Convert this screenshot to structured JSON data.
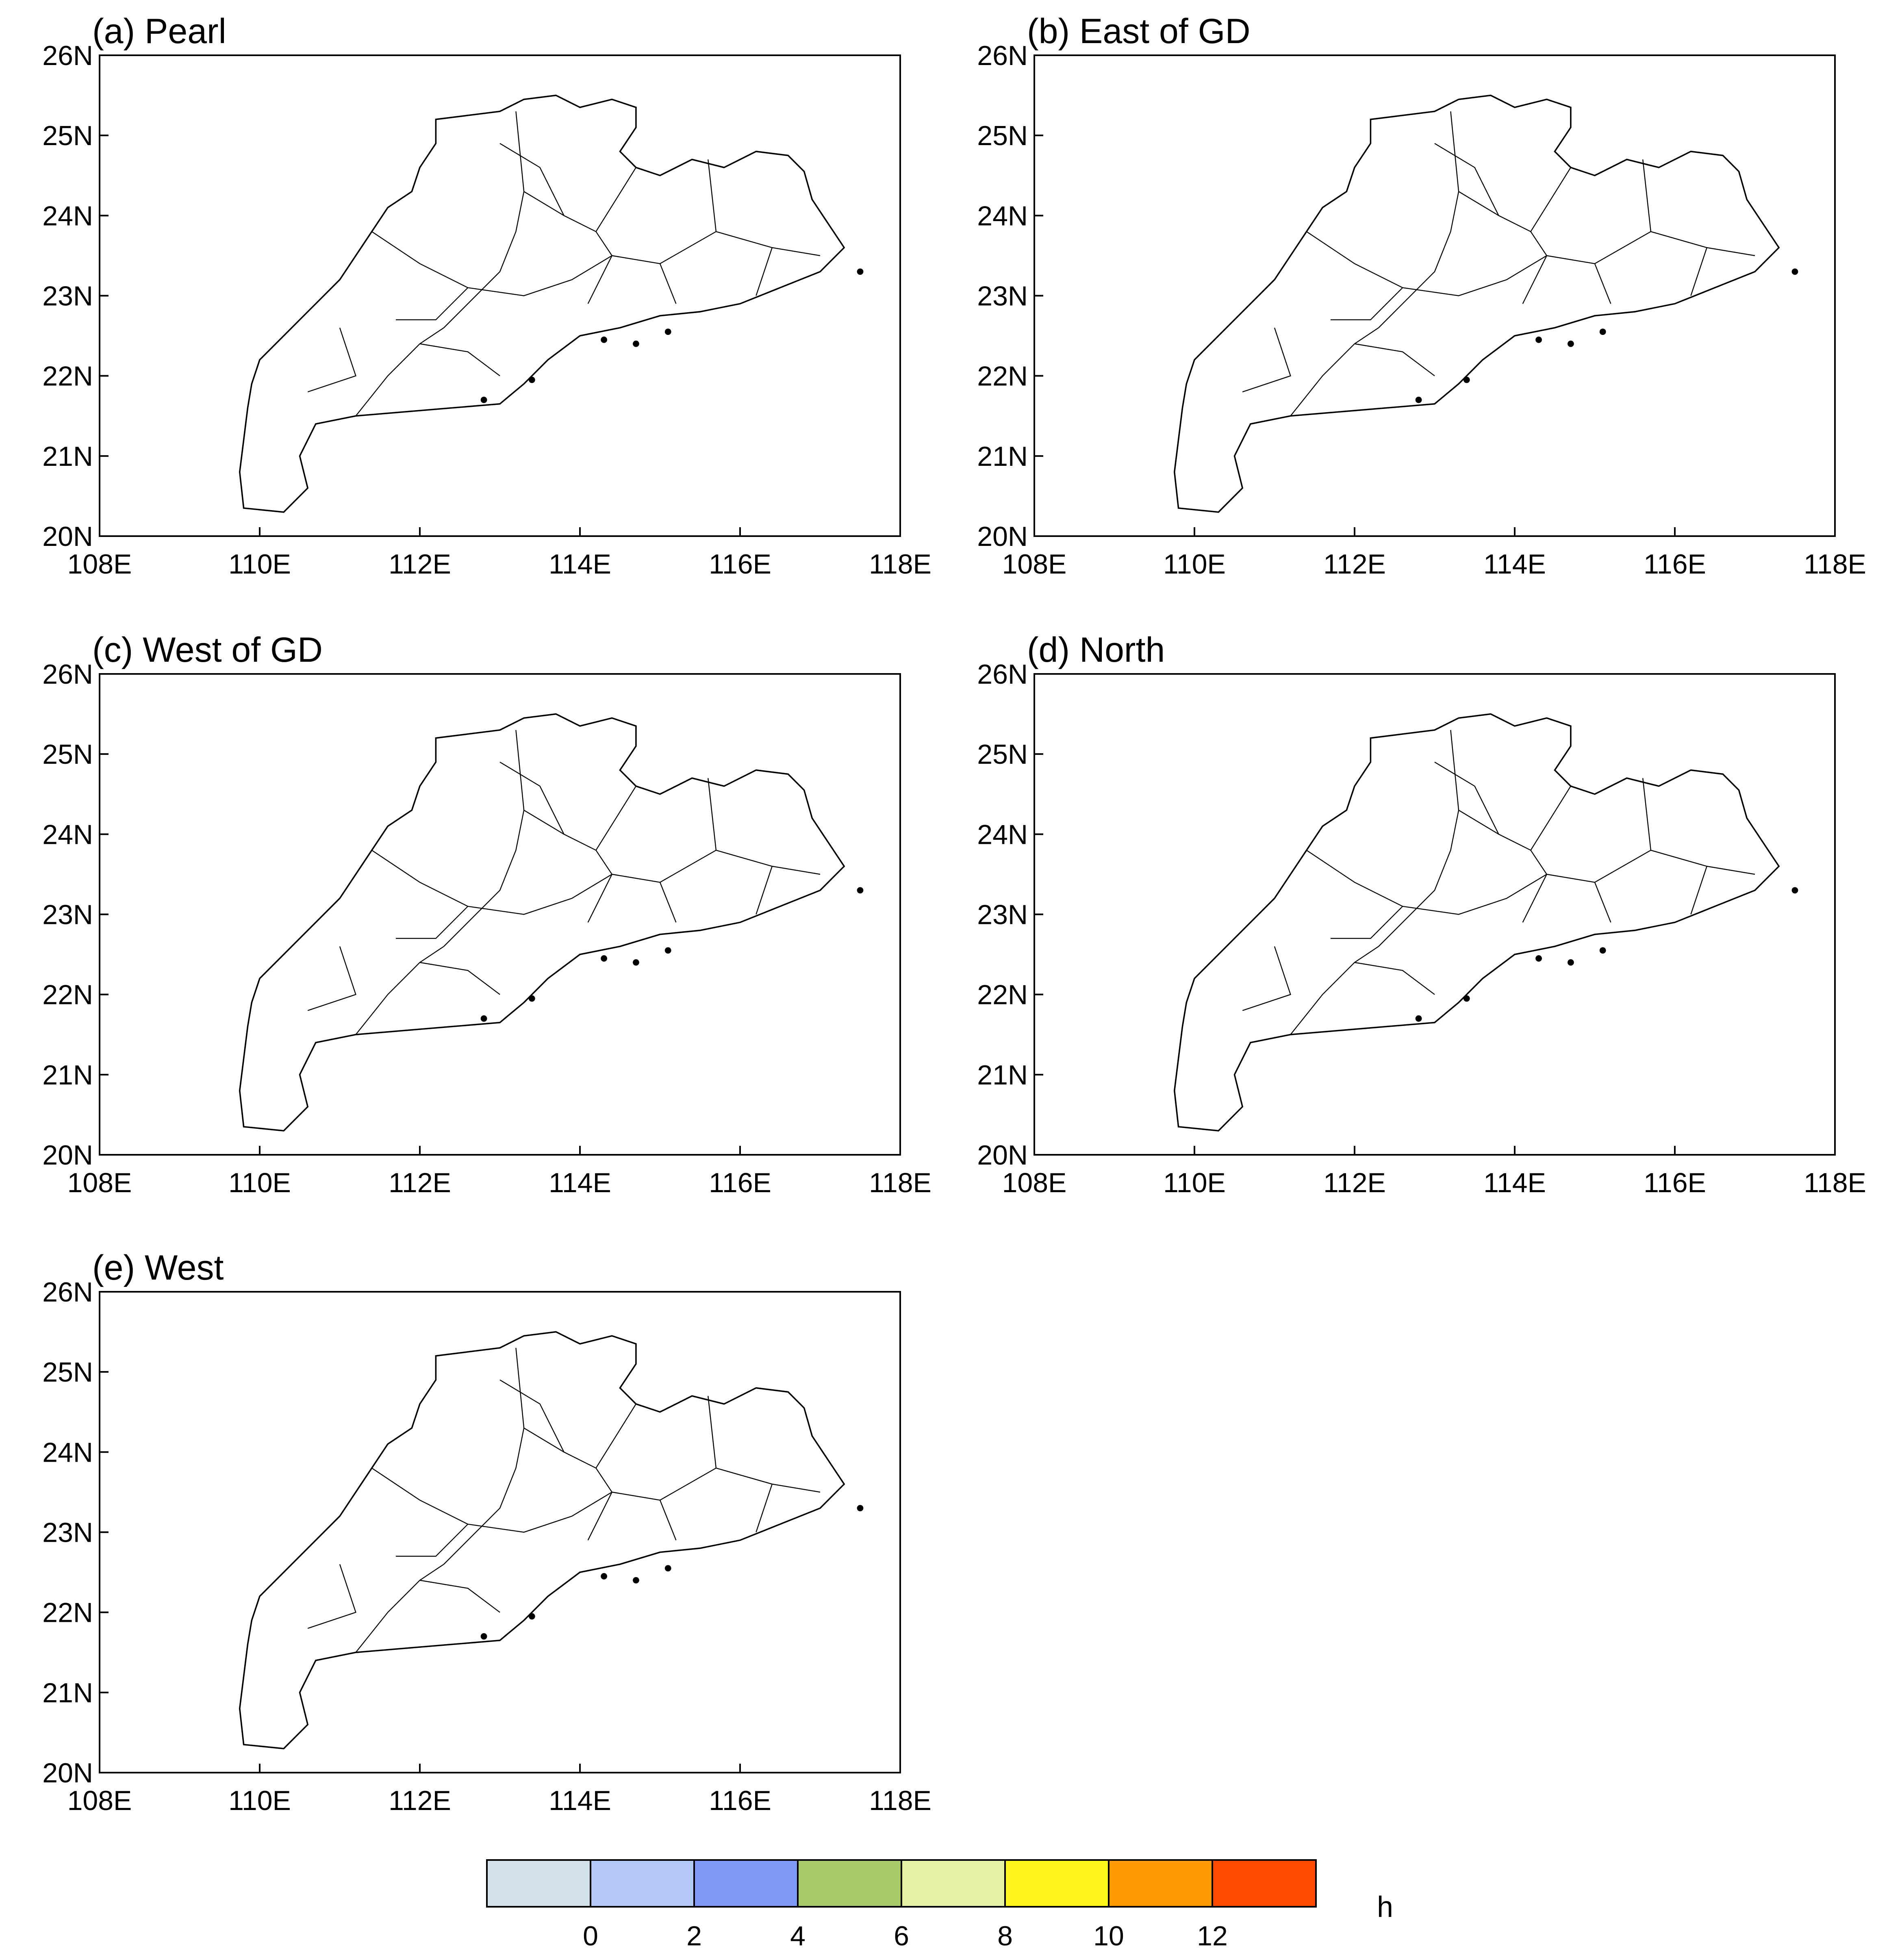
{
  "figure": {
    "panels": [
      {
        "id": "a",
        "title": "(a) Pearl",
        "scheme": "pearl"
      },
      {
        "id": "b",
        "title": "(b) East of GD",
        "scheme": "east"
      },
      {
        "id": "c",
        "title": "(c) West of GD",
        "scheme": "westgd"
      },
      {
        "id": "d",
        "title": "(d) North",
        "scheme": "north"
      },
      {
        "id": "e",
        "title": "(e) West",
        "scheme": "west"
      }
    ],
    "lon_ticks": [
      "108E",
      "110E",
      "112E",
      "114E",
      "116E",
      "118E"
    ],
    "lat_ticks": [
      "20N",
      "21N",
      "22N",
      "23N",
      "24N",
      "25N",
      "26N"
    ],
    "lon_range": [
      108,
      118
    ],
    "lat_range": [
      20,
      26
    ]
  },
  "colorbar": {
    "unit": "h",
    "labels": [
      "0",
      "2",
      "4",
      "6",
      "8",
      "10",
      "12"
    ],
    "colors": [
      "#d4e0ea",
      "#b4c8fa",
      "#8099f5",
      "#a6cb68",
      "#e6f3a5",
      "#fff71c",
      "#ff9a06",
      "#ff4a00"
    ]
  }
}
